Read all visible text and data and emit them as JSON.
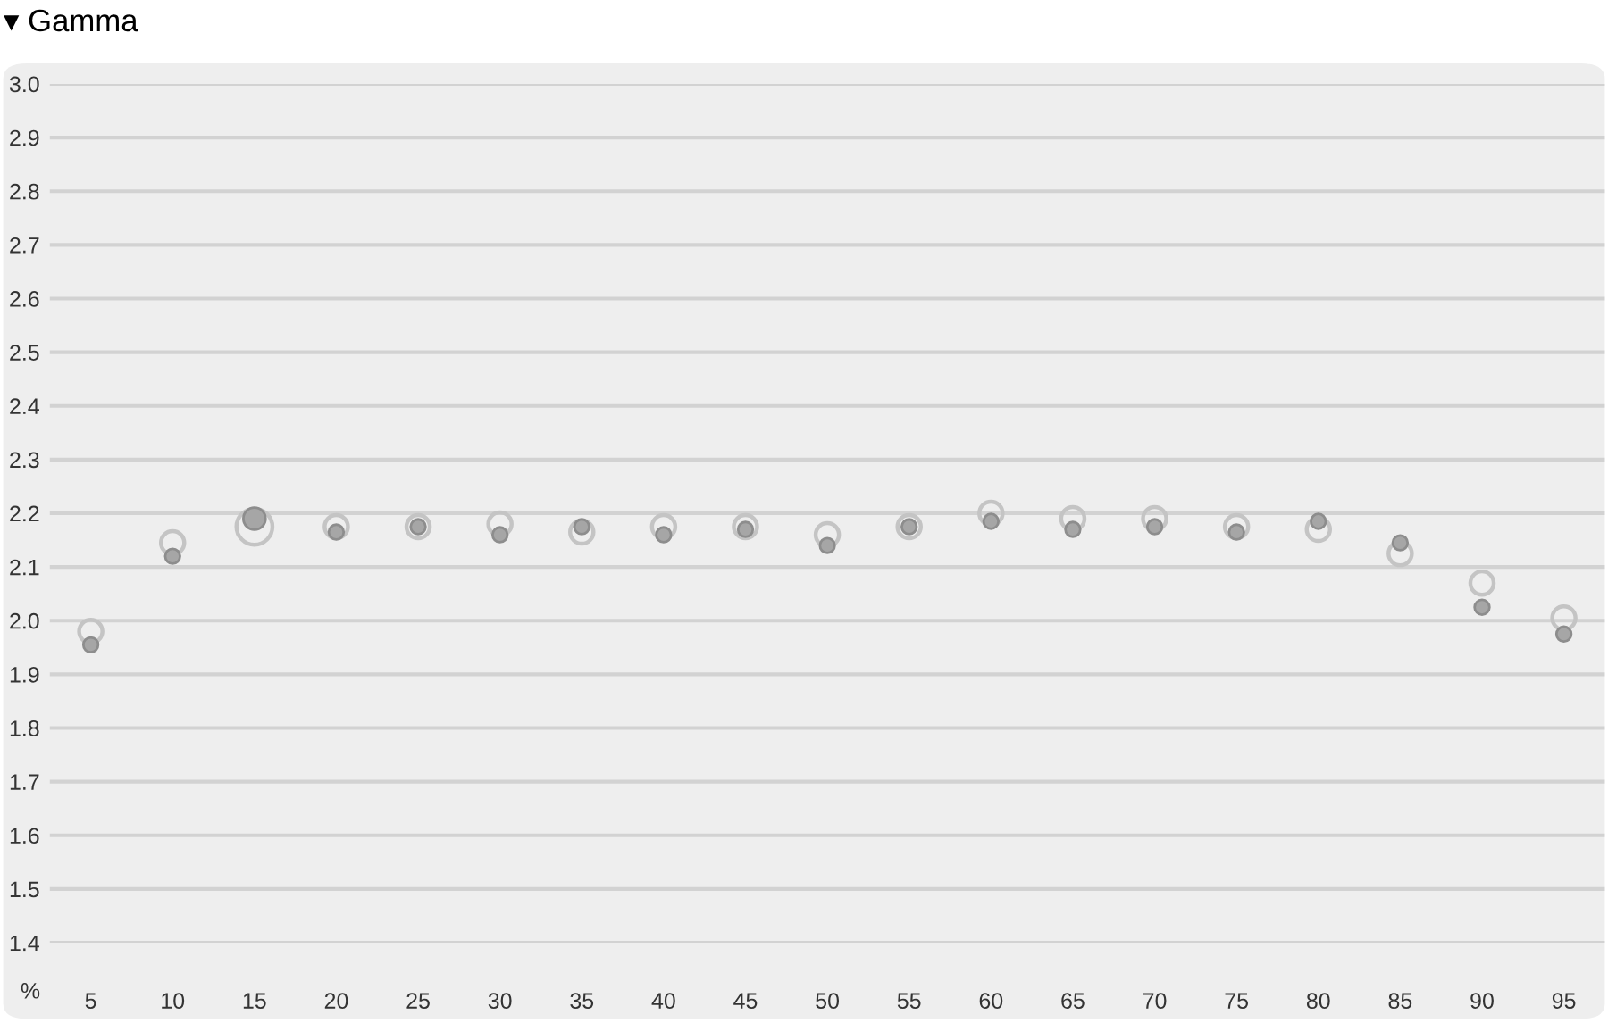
{
  "chart_data": {
    "type": "bubble",
    "title": "▾ Gamma",
    "xlabel": "%",
    "categories": [
      "5",
      "10",
      "15",
      "20",
      "25",
      "30",
      "35",
      "40",
      "45",
      "50",
      "55",
      "60",
      "65",
      "70",
      "75",
      "80",
      "85",
      "90",
      "95"
    ],
    "series": [
      {
        "color": "#c4c4c4",
        "values": [
          1.98,
          2.145,
          2.175,
          2.175,
          2.175,
          2.18,
          2.165,
          2.175,
          2.175,
          2.16,
          2.175,
          2.2,
          2.19,
          2.19,
          2.175,
          2.17,
          2.125,
          2.07,
          2.005
        ],
        "sizes": [
          0.42,
          0.42,
          1,
          0.42,
          0.42,
          0.42,
          0.42,
          0.42,
          0.42,
          0.42,
          0.42,
          0.42,
          0.42,
          0.42,
          0.42,
          0.42,
          0.42,
          0.42,
          0.42
        ]
      },
      {
        "color": "#a6a6a6",
        "values": [
          1.955,
          2.12,
          2.19,
          2.165,
          2.175,
          2.16,
          2.175,
          2.16,
          2.17,
          2.14,
          2.175,
          2.185,
          2.17,
          2.175,
          2.165,
          2.185,
          2.145,
          2.025,
          1.975
        ],
        "sizes": [
          0.17,
          0.17,
          0.38,
          0.17,
          0.17,
          0.17,
          0.17,
          0.17,
          0.17,
          0.17,
          0.17,
          0.17,
          0.17,
          0.17,
          0.17,
          0.17,
          0.17,
          0.17,
          0.17
        ]
      }
    ],
    "ylim": [
      1.4,
      3.0
    ],
    "yticks": [
      1.4,
      1.5,
      1.6,
      1.7,
      1.8,
      1.9,
      {
        "value": 2,
        "label": "2.0"
      },
      2.1,
      2.2,
      2.3,
      2.4,
      2.5,
      2.6,
      2.7,
      2.8,
      2.9,
      {
        "value": 3,
        "label": "3.0"
      }
    ],
    "grid": "y"
  }
}
